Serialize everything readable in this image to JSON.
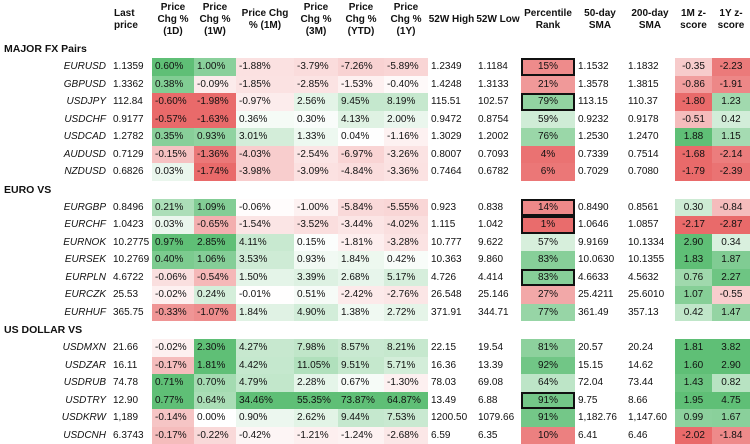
{
  "columns": [
    "",
    "Last price",
    "Price Chg % (1D)",
    "Price Chg % (1W)",
    "Price Chg % (1M)",
    "Price Chg % (3M)",
    "Price Chg % (YTD)",
    "Price Chg % (1Y)",
    "52W High",
    "52W Low",
    "Percentile Rank",
    "50-day SMA",
    "200-day SMA",
    "1M z-score",
    "1Y z-score"
  ],
  "colors": {
    "pos_strong": "#5fbf76",
    "neg_strong": "#e96a6a",
    "neutral": "#ffffff",
    "box_border": "#111111"
  },
  "sections": [
    {
      "title": "MAJOR FX Pairs",
      "rows": [
        {
          "pair": "EURUSD",
          "last": "1.1359",
          "d1": "0.60%",
          "w1": "1.00%",
          "m1": "-1.88%",
          "m3": "-3.79%",
          "ytd": "-7.26%",
          "y1": "-5.89%",
          "high": "1.2349",
          "low": "1.1184",
          "pct": "15%",
          "sma50": "1.1532",
          "sma200": "1.1832",
          "z1m": "-0.35",
          "z1y": "-2.23",
          "boxed": true
        },
        {
          "pair": "GBPUSD",
          "last": "1.3362",
          "d1": "0.38%",
          "w1": "-0.09%",
          "m1": "-1.85%",
          "m3": "-2.85%",
          "ytd": "-1.53%",
          "y1": "-0.40%",
          "high": "1.4248",
          "low": "1.3133",
          "pct": "21%",
          "sma50": "1.3578",
          "sma200": "1.3815",
          "z1m": "-0.86",
          "z1y": "-1.91",
          "boxed": false
        },
        {
          "pair": "USDJPY",
          "last": "112.84",
          "d1": "-0.60%",
          "w1": "-1.98%",
          "m1": "-0.97%",
          "m3": "2.56%",
          "ytd": "9.45%",
          "y1": "8.19%",
          "high": "115.51",
          "low": "102.57",
          "pct": "79%",
          "sma50": "113.15",
          "sma200": "110.37",
          "z1m": "-1.80",
          "z1y": "1.23",
          "boxed": true
        },
        {
          "pair": "USDCHF",
          "last": "0.9177",
          "d1": "-0.57%",
          "w1": "-1.63%",
          "m1": "0.36%",
          "m3": "0.30%",
          "ytd": "4.13%",
          "y1": "2.00%",
          "high": "0.9472",
          "low": "0.8754",
          "pct": "59%",
          "sma50": "0.9232",
          "sma200": "0.9178",
          "z1m": "-0.51",
          "z1y": "0.42",
          "boxed": false
        },
        {
          "pair": "USDCAD",
          "last": "1.2782",
          "d1": "0.35%",
          "w1": "0.93%",
          "m1": "3.01%",
          "m3": "1.33%",
          "ytd": "0.04%",
          "y1": "-1.16%",
          "high": "1.3029",
          "low": "1.2002",
          "pct": "76%",
          "sma50": "1.2530",
          "sma200": "1.2470",
          "z1m": "1.88",
          "z1y": "1.15",
          "boxed": false
        },
        {
          "pair": "AUDUSD",
          "last": "0.7129",
          "d1": "-0.15%",
          "w1": "-1.36%",
          "m1": "-4.03%",
          "m3": "-2.54%",
          "ytd": "-6.97%",
          "y1": "-3.26%",
          "high": "0.8007",
          "low": "0.7093",
          "pct": "4%",
          "sma50": "0.7339",
          "sma200": "0.7514",
          "z1m": "-1.68",
          "z1y": "-2.14",
          "boxed": false
        },
        {
          "pair": "NZDUSD",
          "last": "0.6826",
          "d1": "0.03%",
          "w1": "-1.74%",
          "m1": "-3.98%",
          "m3": "-3.09%",
          "ytd": "-4.84%",
          "y1": "-3.36%",
          "high": "0.7464",
          "low": "0.6782",
          "pct": "6%",
          "sma50": "0.7029",
          "sma200": "0.7080",
          "z1m": "-1.79",
          "z1y": "-2.39",
          "boxed": false
        }
      ]
    },
    {
      "title": "EURO VS",
      "rows": [
        {
          "pair": "EURGBP",
          "last": "0.8496",
          "d1": "0.21%",
          "w1": "1.09%",
          "m1": "-0.06%",
          "m3": "-1.00%",
          "ytd": "-5.84%",
          "y1": "-5.55%",
          "high": "0.923",
          "low": "0.838",
          "pct": "14%",
          "sma50": "0.8490",
          "sma200": "0.8561",
          "z1m": "0.30",
          "z1y": "-0.84",
          "boxed": true
        },
        {
          "pair": "EURCHF",
          "last": "1.0423",
          "d1": "0.03%",
          "w1": "-0.65%",
          "m1": "-1.54%",
          "m3": "-3.52%",
          "ytd": "-3.44%",
          "y1": "-4.02%",
          "high": "1.115",
          "low": "1.042",
          "pct": "1%",
          "sma50": "1.0646",
          "sma200": "1.0857",
          "z1m": "-2.17",
          "z1y": "-2.87",
          "boxed": true
        },
        {
          "pair": "EURNOK",
          "last": "10.2775",
          "d1": "0.97%",
          "w1": "2.85%",
          "m1": "4.11%",
          "m3": "0.15%",
          "ytd": "-1.81%",
          "y1": "-3.28%",
          "high": "10.777",
          "low": "9.622",
          "pct": "57%",
          "sma50": "9.9169",
          "sma200": "10.1334",
          "z1m": "2.90",
          "z1y": "0.34",
          "boxed": false
        },
        {
          "pair": "EURSEK",
          "last": "10.2769",
          "d1": "0.40%",
          "w1": "1.06%",
          "m1": "3.53%",
          "m3": "0.93%",
          "ytd": "1.84%",
          "y1": "0.42%",
          "high": "10.363",
          "low": "9.860",
          "pct": "83%",
          "sma50": "10.0630",
          "sma200": "10.1355",
          "z1m": "1.83",
          "z1y": "1.87",
          "boxed": false
        },
        {
          "pair": "EURPLN",
          "last": "4.6722",
          "d1": "-0.06%",
          "w1": "-0.54%",
          "m1": "1.50%",
          "m3": "3.39%",
          "ytd": "2.68%",
          "y1": "5.17%",
          "high": "4.726",
          "low": "4.414",
          "pct": "83%",
          "sma50": "4.6633",
          "sma200": "4.5632",
          "z1m": "0.76",
          "z1y": "2.27",
          "boxed": true
        },
        {
          "pair": "EURCZK",
          "last": "25.53",
          "d1": "-0.02%",
          "w1": "0.24%",
          "m1": "-0.01%",
          "m3": "0.51%",
          "ytd": "-2.42%",
          "y1": "-2.76%",
          "high": "26.548",
          "low": "25.146",
          "pct": "27%",
          "sma50": "25.4211",
          "sma200": "25.6010",
          "z1m": "1.07",
          "z1y": "-0.55",
          "boxed": false
        },
        {
          "pair": "EURHUF",
          "last": "365.75",
          "d1": "-0.33%",
          "w1": "-1.07%",
          "m1": "1.84%",
          "m3": "4.90%",
          "ytd": "1.38%",
          "y1": "2.72%",
          "high": "371.91",
          "low": "344.71",
          "pct": "77%",
          "sma50": "361.49",
          "sma200": "357.13",
          "z1m": "0.42",
          "z1y": "1.47",
          "boxed": false
        }
      ]
    },
    {
      "title": "US DOLLAR VS",
      "rows": [
        {
          "pair": "USDMXN",
          "last": "21.66",
          "d1": "-0.02%",
          "w1": "2.30%",
          "m1": "4.27%",
          "m3": "7.98%",
          "ytd": "8.57%",
          "y1": "8.21%",
          "high": "22.15",
          "low": "19.54",
          "pct": "81%",
          "sma50": "20.57",
          "sma200": "20.24",
          "z1m": "1.81",
          "z1y": "3.82",
          "boxed": false
        },
        {
          "pair": "USDZAR",
          "last": "16.11",
          "d1": "-0.17%",
          "w1": "1.81%",
          "m1": "4.42%",
          "m3": "11.05%",
          "ytd": "9.51%",
          "y1": "5.71%",
          "high": "16.36",
          "low": "13.39",
          "pct": "92%",
          "sma50": "15.15",
          "sma200": "14.62",
          "z1m": "1.60",
          "z1y": "2.90",
          "boxed": false
        },
        {
          "pair": "USDRUB",
          "last": "74.78",
          "d1": "0.71%",
          "w1": "0.70%",
          "m1": "4.79%",
          "m3": "2.28%",
          "ytd": "0.67%",
          "y1": "-1.30%",
          "high": "78.03",
          "low": "69.08",
          "pct": "64%",
          "sma50": "72.04",
          "sma200": "73.44",
          "z1m": "1.43",
          "z1y": "0.82",
          "boxed": false
        },
        {
          "pair": "USDTRY",
          "last": "12.90",
          "d1": "0.77%",
          "w1": "0.64%",
          "m1": "34.46%",
          "m3": "55.35%",
          "ytd": "73.87%",
          "y1": "64.87%",
          "high": "13.49",
          "low": "6.88",
          "pct": "91%",
          "sma50": "9.75",
          "sma200": "8.66",
          "z1m": "1.95",
          "z1y": "4.75",
          "boxed": true
        },
        {
          "pair": "USDKRW",
          "last": "1,189",
          "d1": "-0.14%",
          "w1": "0.00%",
          "m1": "0.90%",
          "m3": "2.62%",
          "ytd": "9.44%",
          "y1": "7.53%",
          "high": "1200.50",
          "low": "1079.66",
          "pct": "91%",
          "sma50": "1,182.76",
          "sma200": "1,147.60",
          "z1m": "0.99",
          "z1y": "1.67",
          "boxed": false
        },
        {
          "pair": "USDCNH",
          "last": "6.3743",
          "d1": "-0.17%",
          "w1": "-0.22%",
          "m1": "-0.42%",
          "m3": "-1.21%",
          "ytd": "-1.24%",
          "y1": "-2.68%",
          "high": "6.59",
          "low": "6.35",
          "pct": "10%",
          "sma50": "6.41",
          "sma200": "6.46",
          "z1m": "-2.02",
          "z1y": "-1.84",
          "boxed": false
        }
      ]
    }
  ]
}
